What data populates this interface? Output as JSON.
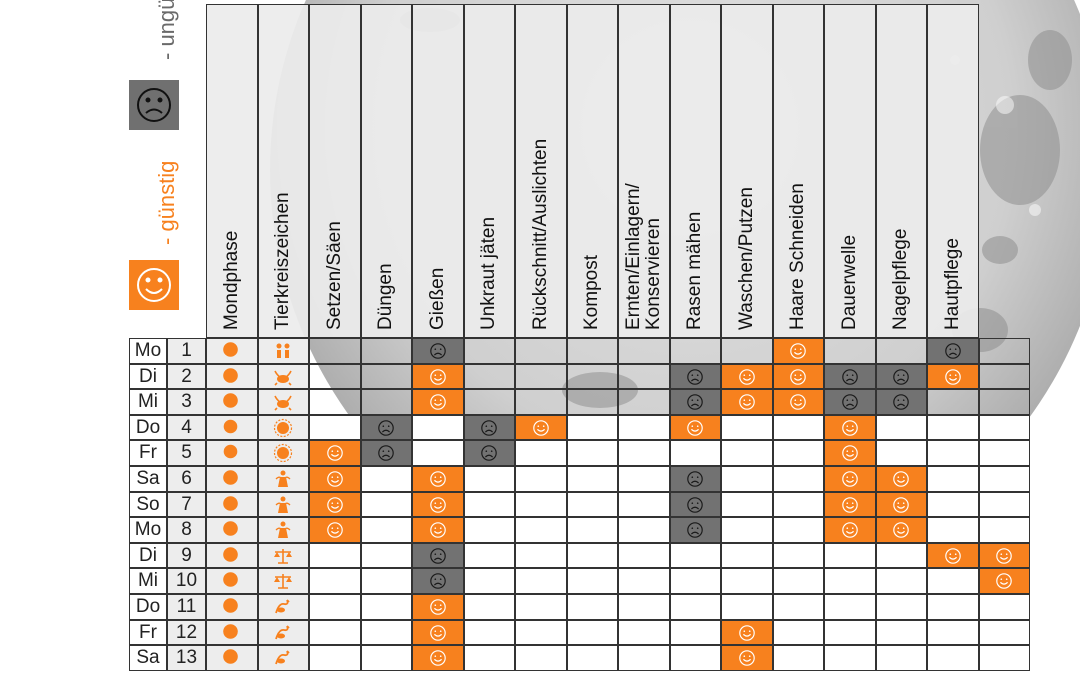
{
  "legend": {
    "good": {
      "label": "- günstig",
      "icon": "smiley-happy-icon",
      "color": "#F7811E"
    },
    "bad": {
      "label": "- ungünstig",
      "icon": "smiley-sad-icon",
      "color": "#707070"
    }
  },
  "colors": {
    "good": "#F7811E",
    "bad": "#727272",
    "weekday_bg": "#EDEDED",
    "grid": "#333333"
  },
  "columns": [
    "Mondphase",
    "Tierkreiszeichen",
    "Setzen/Säen",
    "Düngen",
    "Gießen",
    "Unkraut jäten",
    "Rückschnitt/Auslichten",
    "Kompost",
    "Ernten/Einlagern/\nKonservieren",
    "Rasen mähen",
    "Waschen/Putzen",
    "Haare Schneiden",
    "Dauerwelle",
    "Nagelpflege",
    "Hautpflege"
  ],
  "rows": [
    {
      "weekday": "Mo",
      "day": "1",
      "moon": "waxing-gibbous-icon",
      "zodiac": "gemini-icon",
      "cells": [
        "",
        "",
        "B",
        "",
        "",
        "",
        "",
        "",
        "",
        "G",
        "",
        "",
        "B",
        ""
      ]
    },
    {
      "weekday": "Di",
      "day": "2",
      "moon": "waxing-gibbous-icon",
      "zodiac": "cancer-icon",
      "cells": [
        "",
        "",
        "G",
        "",
        "",
        "",
        "",
        "B",
        "G",
        "G",
        "B",
        "B",
        "G",
        ""
      ]
    },
    {
      "weekday": "Mi",
      "day": "3",
      "moon": "waxing-gibbous-icon",
      "zodiac": "cancer-icon",
      "cells": [
        "",
        "",
        "G",
        "",
        "",
        "",
        "",
        "B",
        "G",
        "G",
        "B",
        "B",
        "",
        ""
      ]
    },
    {
      "weekday": "Do",
      "day": "4",
      "moon": "full-moon-icon",
      "zodiac": "leo-icon",
      "cells": [
        "",
        "B",
        "",
        "B",
        "G",
        "",
        "",
        "G",
        "",
        "",
        "G",
        "",
        "",
        ""
      ]
    },
    {
      "weekday": "Fr",
      "day": "5",
      "moon": "full-moon-icon",
      "zodiac": "leo-icon",
      "cells": [
        "G",
        "B",
        "",
        "B",
        "",
        "",
        "",
        "",
        "",
        "",
        "G",
        "",
        "",
        ""
      ]
    },
    {
      "weekday": "Sa",
      "day": "6",
      "moon": "waning-gibbous-icon",
      "zodiac": "virgo-icon",
      "cells": [
        "G",
        "",
        "G",
        "",
        "",
        "",
        "",
        "B",
        "",
        "",
        "G",
        "G",
        "",
        ""
      ]
    },
    {
      "weekday": "So",
      "day": "7",
      "moon": "waning-gibbous-icon",
      "zodiac": "virgo-icon",
      "cells": [
        "G",
        "",
        "G",
        "",
        "",
        "",
        "",
        "B",
        "",
        "",
        "G",
        "G",
        "",
        ""
      ]
    },
    {
      "weekday": "Mo",
      "day": "8",
      "moon": "waning-gibbous-icon",
      "zodiac": "virgo-icon",
      "cells": [
        "G",
        "",
        "G",
        "",
        "",
        "",
        "",
        "B",
        "",
        "",
        "G",
        "G",
        "",
        ""
      ]
    },
    {
      "weekday": "Di",
      "day": "9",
      "moon": "waning-gibbous-icon",
      "zodiac": "libra-icon",
      "cells": [
        "",
        "",
        "B",
        "",
        "",
        "",
        "",
        "",
        "",
        "",
        "",
        "",
        "G",
        "G"
      ]
    },
    {
      "weekday": "Mi",
      "day": "10",
      "moon": "waning-gibbous-icon",
      "zodiac": "libra-icon",
      "cells": [
        "",
        "",
        "B",
        "",
        "",
        "",
        "",
        "",
        "",
        "",
        "",
        "",
        "",
        "G"
      ]
    },
    {
      "weekday": "Do",
      "day": "11",
      "moon": "waning-gibbous-icon",
      "zodiac": "scorpio-icon",
      "cells": [
        "",
        "",
        "G",
        "",
        "",
        "",
        "",
        "",
        "",
        "",
        "",
        "",
        "",
        ""
      ]
    },
    {
      "weekday": "Fr",
      "day": "12",
      "moon": "waning-gibbous-icon",
      "zodiac": "scorpio-icon",
      "cells": [
        "",
        "",
        "G",
        "",
        "",
        "",
        "",
        "",
        "G",
        "",
        "",
        "",
        "",
        ""
      ]
    },
    {
      "weekday": "Sa",
      "day": "13",
      "moon": "waning-gibbous-icon",
      "zodiac": "scorpio-icon",
      "cells": [
        "",
        "",
        "G",
        "",
        "",
        "",
        "",
        "",
        "G",
        "",
        "",
        "",
        "",
        ""
      ]
    }
  ]
}
